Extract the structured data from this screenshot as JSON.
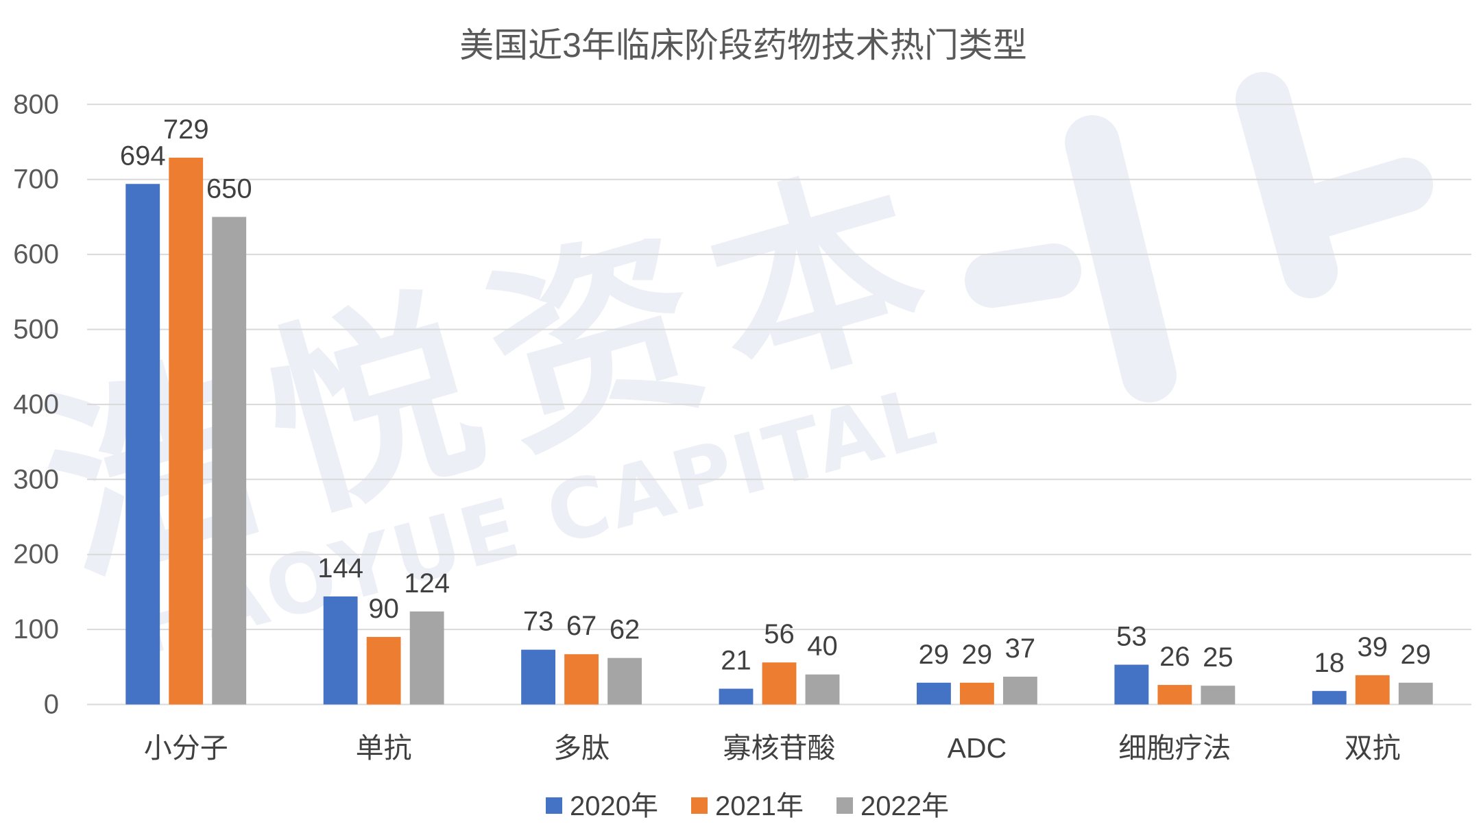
{
  "chart_data": {
    "type": "bar",
    "title": "美国近3年临床阶段药物技术热门类型",
    "categories": [
      "小分子",
      "单抗",
      "多肽",
      "寡核苷酸",
      "ADC",
      "细胞疗法",
      "双抗"
    ],
    "series": [
      {
        "name": "2020年",
        "color": "#4472C4",
        "values": [
          694,
          144,
          73,
          21,
          29,
          53,
          18
        ]
      },
      {
        "name": "2021年",
        "color": "#ED7D31",
        "values": [
          729,
          90,
          67,
          56,
          29,
          26,
          39
        ]
      },
      {
        "name": "2022年",
        "color": "#A5A5A5",
        "values": [
          650,
          124,
          62,
          40,
          37,
          25,
          29
        ]
      }
    ],
    "ylim": [
      0,
      800
    ],
    "yticks": [
      0,
      100,
      200,
      300,
      400,
      500,
      600,
      700,
      800
    ],
    "grid": true,
    "legend": "bottom",
    "data_labels": true
  },
  "watermark": {
    "cn": "浩悦资本",
    "en": "HAOYUE CAPITAL",
    "color": "#ECEFF6"
  },
  "colors": {
    "text": "#595959",
    "label_text": "#404040",
    "grid": "#D9D9D9",
    "background": "#FFFFFF"
  }
}
